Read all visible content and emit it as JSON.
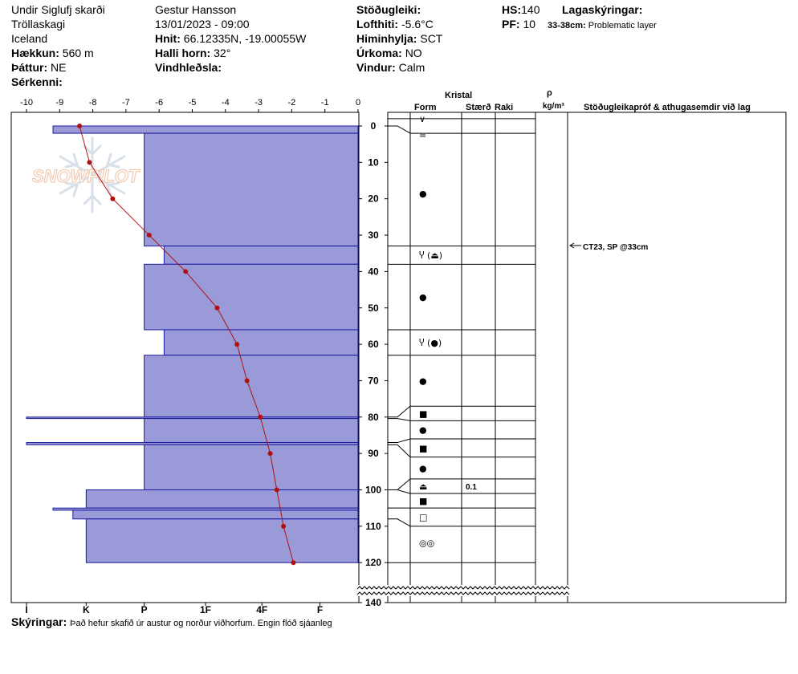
{
  "header": {
    "location": "Undir Siglufj skarði",
    "region": "Tröllaskagi",
    "country": "Iceland",
    "elevation_label": "Hækkun:",
    "elevation": "560 m",
    "aspect_label": "Þáttur:",
    "aspect": "NE",
    "features_label": "Sérkenni:",
    "observer": "Gestur Hansson",
    "datetime": "13/01/2023 - 09:00",
    "coords_label": "Hnit:",
    "coords": "66.12335N, -19.00055W",
    "slope_label": "Halli horn:",
    "slope": "32°",
    "wind_loading_label": "Vindhleðsla:",
    "stability_label": "Stöðugleiki:",
    "air_temp_label": "Lofthiti:",
    "air_temp": "-5.6°C",
    "sky_label": "Himinhylja:",
    "sky": "SCT",
    "precip_label": "Úrkoma:",
    "precip": "NO",
    "wind_label": "Vindur:",
    "wind": "Calm",
    "hs_label": "HS:",
    "hs": "140",
    "pf_label": "PF:",
    "pf": "10",
    "layer_notes_label": "Lagaskýringar:",
    "layer_note_depth": "33-38cm:",
    "layer_note_text": "Problematic layer"
  },
  "columns": {
    "kristal": "Kristal",
    "form": "Form",
    "size": "Stærð",
    "moisture": "Raki",
    "rho": "ρ",
    "density_unit": "kg/m³",
    "stability_tests": "Stöðugleikapróf & athugasemdir við lag"
  },
  "test_note": "CT23, SP @33cm",
  "footer": {
    "label": "Skýringar:",
    "text": "Það hefur skafið úr austur og norður viðhorfum. Engin flóð sjáanleg"
  },
  "watermark": "SNOWPILOT",
  "colors": {
    "hardness_fill": "#9a9ad8",
    "hardness_stroke": "#1a1aa0",
    "temp_line": "#b01010"
  },
  "chart_data": {
    "type": "line",
    "temp_axis": {
      "range": [
        -10,
        0
      ],
      "ticks": [
        -10,
        -9,
        -8,
        -7,
        -6,
        -5,
        -4,
        -3,
        -2,
        -1,
        0
      ]
    },
    "depth_axis": {
      "range": [
        0,
        140
      ],
      "ticks": [
        0,
        10,
        20,
        30,
        40,
        50,
        60,
        70,
        80,
        90,
        100,
        110,
        120,
        140
      ]
    },
    "hardness_axis": {
      "labels": [
        "I",
        "K",
        "P",
        "1F",
        "4F",
        "F"
      ],
      "values": [
        10,
        8.2,
        6.45,
        4.6,
        2.9,
        1.15
      ]
    },
    "temperature": [
      {
        "depth": 0,
        "temp": -8.4
      },
      {
        "depth": 10,
        "temp": -8.1
      },
      {
        "depth": 20,
        "temp": -7.4
      },
      {
        "depth": 30,
        "temp": -6.3
      },
      {
        "depth": 40,
        "temp": -5.2
      },
      {
        "depth": 50,
        "temp": -4.25
      },
      {
        "depth": 60,
        "temp": -3.65
      },
      {
        "depth": 70,
        "temp": -3.35
      },
      {
        "depth": 80,
        "temp": -2.95
      },
      {
        "depth": 90,
        "temp": -2.65
      },
      {
        "depth": 100,
        "temp": -2.45
      },
      {
        "depth": 110,
        "temp": -2.25
      },
      {
        "depth": 120,
        "temp": -1.95
      }
    ],
    "hardness_layers": [
      {
        "top": 0,
        "bottom": 2,
        "hardness": 9.2
      },
      {
        "top": 2,
        "bottom": 33,
        "hardness": 6.45
      },
      {
        "top": 33,
        "bottom": 38,
        "hardness": 5.85
      },
      {
        "top": 38,
        "bottom": 56,
        "hardness": 6.45
      },
      {
        "top": 56,
        "bottom": 63,
        "hardness": 5.85
      },
      {
        "top": 63,
        "bottom": 80,
        "hardness": 6.45
      },
      {
        "top": 80,
        "bottom": 80.4,
        "hardness": 10
      },
      {
        "top": 80.4,
        "bottom": 87,
        "hardness": 6.45
      },
      {
        "top": 87,
        "bottom": 87.6,
        "hardness": 10
      },
      {
        "top": 87.6,
        "bottom": 100,
        "hardness": 6.45
      },
      {
        "top": 100,
        "bottom": 105,
        "hardness": 8.2
      },
      {
        "top": 105,
        "bottom": 105.6,
        "hardness": 9.2
      },
      {
        "top": 105.6,
        "bottom": 108,
        "hardness": 8.6
      },
      {
        "top": 108,
        "bottom": 120,
        "hardness": 8.2
      }
    ],
    "layer_boundaries": [
      2,
      33,
      38,
      56,
      63,
      77,
      81,
      86,
      91,
      97,
      101,
      105,
      110,
      120
    ],
    "crystal_symbols": [
      {
        "depth": -2,
        "symbol": "∨",
        "size": ""
      },
      {
        "depth": 2.5,
        "symbol": "=",
        "size": ""
      },
      {
        "depth": 18.5,
        "symbol": "●",
        "size": ""
      },
      {
        "depth": 35.5,
        "symbol": "Ⴤ (⏏)",
        "size": ""
      },
      {
        "depth": 47,
        "symbol": "●",
        "size": ""
      },
      {
        "depth": 59.5,
        "symbol": "Ⴤ (●)",
        "size": ""
      },
      {
        "depth": 70,
        "symbol": "●",
        "size": ""
      },
      {
        "depth": 79,
        "symbol": "■",
        "size": ""
      },
      {
        "depth": 83.5,
        "symbol": "●",
        "size": ""
      },
      {
        "depth": 88.5,
        "symbol": "■",
        "size": ""
      },
      {
        "depth": 94,
        "symbol": "●",
        "size": ""
      },
      {
        "depth": 99,
        "symbol": "⏏",
        "size": "0.1"
      },
      {
        "depth": 103,
        "symbol": "■",
        "size": ""
      },
      {
        "depth": 107.5,
        "symbol": "□",
        "size": ""
      },
      {
        "depth": 114.5,
        "symbol": "◎◎",
        "size": ""
      }
    ]
  }
}
